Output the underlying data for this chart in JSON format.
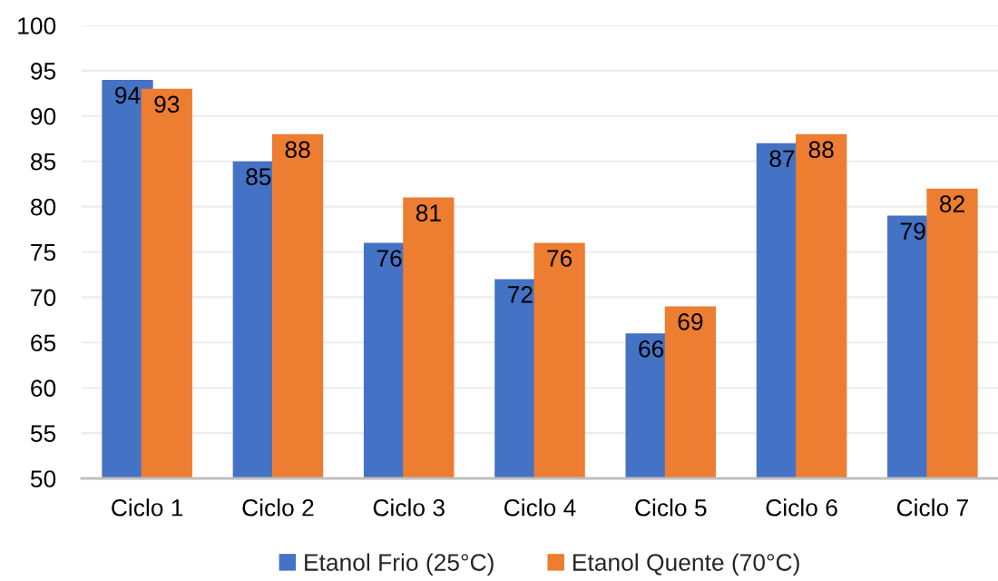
{
  "chart_data": {
    "type": "bar",
    "categories": [
      "Ciclo 1",
      "Ciclo 2",
      "Ciclo 3",
      "Ciclo 4",
      "Ciclo 5",
      "Ciclo 6",
      "Ciclo 7"
    ],
    "series": [
      {
        "name": "Etanol Frio (25°C)",
        "color": "#4472c4",
        "values": [
          94,
          85,
          76,
          72,
          66,
          87,
          79
        ]
      },
      {
        "name": "Etanol Quente (70°C)",
        "color": "#ed7d31",
        "values": [
          93,
          88,
          81,
          76,
          69,
          88,
          82
        ]
      }
    ],
    "ylim": [
      50,
      100
    ],
    "yticks": [
      50,
      55,
      60,
      65,
      70,
      75,
      80,
      85,
      90,
      95,
      100
    ],
    "grid": "y",
    "legend": "bottom",
    "data_labels": true
  }
}
